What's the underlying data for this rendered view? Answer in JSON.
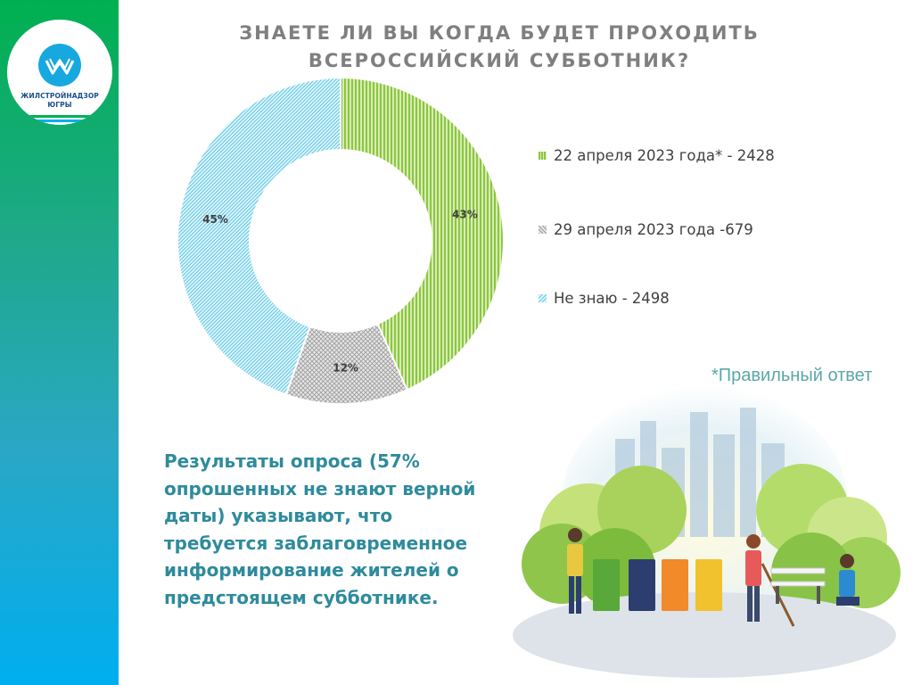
{
  "logo": {
    "line1": "ЖИЛСТРОЙНАДЗОР",
    "line2": "ЮГРЫ"
  },
  "title": {
    "line1": "ЗНАЕТЕ ЛИ ВЫ КОГДА БУДЕТ ПРОХОДИТЬ",
    "line2": "ВСЕРОССИЙСКИЙ СУББОТНИК?"
  },
  "chart_data": {
    "type": "pie",
    "title": "ЗНАЕТЕ ЛИ ВЫ КОГДА БУДЕТ ПРОХОДИТЬ ВСЕРОССИЙСКИЙ СУББОТНИК?",
    "categories": [
      "22 апреля 2023 года* - 2428",
      "29 апреля 2023 года -679",
      "Не знаю - 2498"
    ],
    "values": [
      2428,
      679,
      2498
    ],
    "percent_labels": [
      "43%",
      "12%",
      "45%"
    ],
    "colors": [
      "#8cc63f",
      "#9a9a9a",
      "#5bc8e6"
    ],
    "legend_position": "right",
    "donut": true
  },
  "footnote": "*Правильный ответ",
  "conclusion": {
    "lines": [
      "Результаты опроса (57%",
      "опрошенных не знают верной",
      "даты) указывают, что",
      "требуется заблаговременное",
      "информирование жителей о",
      "предстоящем субботнике."
    ]
  },
  "colors": {
    "sidebar_top": "#00b050",
    "sidebar_bottom": "#00aeef",
    "title": "#7f7f7f",
    "conclusion": "#2e8b9c",
    "footnote": "#5aa7a8"
  }
}
